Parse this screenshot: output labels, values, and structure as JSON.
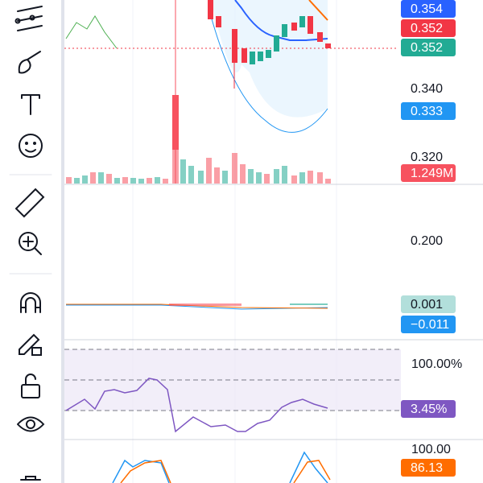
{
  "price_axis": {
    "labels": [
      "0.340",
      "0.320",
      "0.200",
      "100.00%",
      "100.00"
    ]
  },
  "badges": [
    {
      "text": "0.354",
      "color": "#2962ff"
    },
    {
      "text": "0.352",
      "color": "#f23645"
    },
    {
      "text": "0.352",
      "color": "#22ab94"
    },
    {
      "text": "0.333",
      "color": "#2196f3"
    },
    {
      "text": "1.249M",
      "color": "#f7525f"
    },
    {
      "text": "0.001",
      "color": "#b2dfdb"
    },
    {
      "text": "−0.011",
      "color": "#2196f3"
    },
    {
      "text": "3.45%",
      "color": "#7e57c2"
    },
    {
      "text": "86.13",
      "color": "#ff6d00"
    }
  ]
}
